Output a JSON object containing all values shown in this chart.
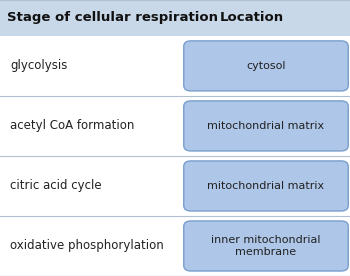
{
  "title_col1": "Stage of cellular respiration",
  "title_col2": "Location",
  "rows": [
    {
      "stage": "glycolysis",
      "location": "cytosol"
    },
    {
      "stage": "acetyl CoA formation",
      "location": "mitochondrial matrix"
    },
    {
      "stage": "citric acid cycle",
      "location": "mitochondrial matrix"
    },
    {
      "stage": "oxidative phosphorylation",
      "location": "inner mitochondrial\nmembrane"
    }
  ],
  "header_bg": "#c8d8e8",
  "row_bg": "#ffffff",
  "box_bg": "#aec6e8",
  "box_border": "#7a9fcc",
  "text_color": "#222222",
  "header_text_color": "#111111",
  "divider_color": "#b0c0d0",
  "fig_bg": "#f5f5f5",
  "font_size_header": 9.5,
  "font_size_stage": 8.5,
  "font_size_location": 8.0
}
